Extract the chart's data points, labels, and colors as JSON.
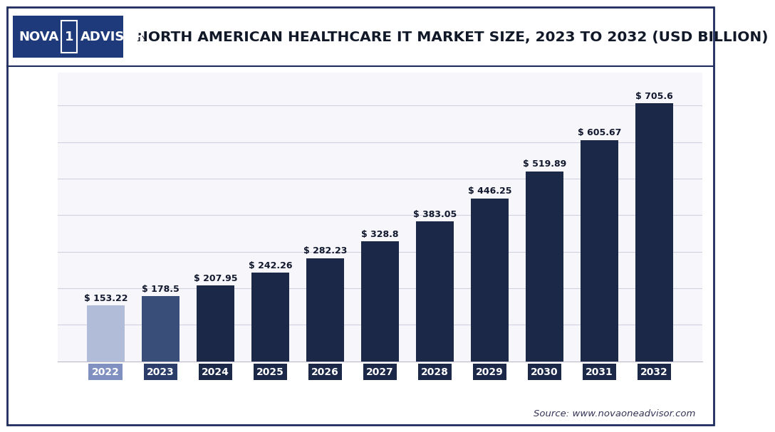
{
  "years": [
    "2022",
    "2023",
    "2024",
    "2025",
    "2026",
    "2027",
    "2028",
    "2029",
    "2030",
    "2031",
    "2032"
  ],
  "values": [
    153.22,
    178.5,
    207.95,
    242.26,
    282.23,
    328.8,
    383.05,
    446.25,
    519.89,
    605.67,
    705.6
  ],
  "labels": [
    "$ 153.22",
    "$ 178.5",
    "$ 207.95",
    "$ 242.26",
    "$ 282.23",
    "$ 328.8",
    "$ 383.05",
    "$ 446.25",
    "$ 519.89",
    "$ 605.67",
    "$ 705.6"
  ],
  "bar_colors": [
    "#b0bcd8",
    "#3a4e7a",
    "#1b2848",
    "#1b2848",
    "#1b2848",
    "#1b2848",
    "#1b2848",
    "#1b2848",
    "#1b2848",
    "#1b2848",
    "#1b2848"
  ],
  "tick_bg_colors": [
    "#8090c0",
    "#2c3d6a",
    "#1b2848",
    "#1b2848",
    "#1b2848",
    "#1b2848",
    "#1b2848",
    "#1b2848",
    "#1b2848",
    "#1b2848",
    "#1b2848"
  ],
  "title": "NORTH AMERICAN HEALTHCARE IT MARKET SIZE, 2023 TO 2032 (USD BILLION)",
  "source_text": "Source: www.novaoneadvisor.com",
  "bg_color": "#ffffff",
  "plot_bg_color": "#f7f7fb",
  "grid_color": "#d0d0e0",
  "header_bg_color": "#ffffff",
  "border_color": "#1e2d5e",
  "logo_bg_color": "#1e3a7a",
  "logo_box_color": "#ffffff",
  "logo_text_color": "#ffffff",
  "logo_num_color": "#1e3a7a",
  "ylim": [
    0,
    790
  ],
  "yticks": [
    0,
    100,
    200,
    300,
    400,
    500,
    600,
    700
  ],
  "bar_label_fontsize": 9.0,
  "bar_label_color": "#12192e",
  "title_fontsize": 14.5,
  "source_fontsize": 9.5,
  "tick_label_fontsize": 10.0
}
